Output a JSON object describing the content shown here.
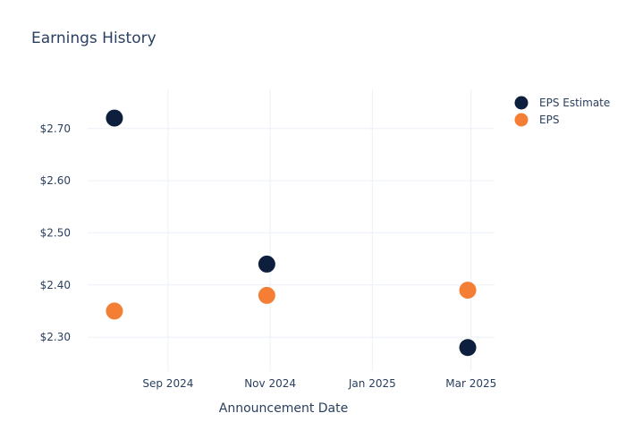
{
  "chart_data": {
    "type": "scatter",
    "title": "Earnings History",
    "xlabel": "Announcement Date",
    "ylabel": "",
    "x_ticks": [
      {
        "date": "2024-09-01",
        "label": "Sep 2024"
      },
      {
        "date": "2024-11-01",
        "label": "Nov 2024"
      },
      {
        "date": "2025-01-01",
        "label": "Jan 2025"
      },
      {
        "date": "2025-03-01",
        "label": "Mar 2025"
      }
    ],
    "y_ticks": [
      {
        "value": 2.3,
        "label": "$2.30"
      },
      {
        "value": 2.4,
        "label": "$2.40"
      },
      {
        "value": 2.5,
        "label": "$2.50"
      },
      {
        "value": 2.6,
        "label": "$2.60"
      },
      {
        "value": 2.7,
        "label": "$2.70"
      }
    ],
    "xlim": [
      "2024-07-15",
      "2025-03-15"
    ],
    "ylim": [
      2.235,
      2.775
    ],
    "grid": true,
    "legend_position": "top-right",
    "series": [
      {
        "name": "EPS Estimate",
        "color": "#0d1f3c",
        "points": [
          {
            "x": "2024-07-31",
            "y": 2.72
          },
          {
            "x": "2024-10-30",
            "y": 2.44
          },
          {
            "x": "2025-02-27",
            "y": 2.28
          }
        ]
      },
      {
        "name": "EPS",
        "color": "#f37e34",
        "points": [
          {
            "x": "2024-07-31",
            "y": 2.35
          },
          {
            "x": "2024-10-30",
            "y": 2.38
          },
          {
            "x": "2025-02-27",
            "y": 2.39
          }
        ]
      }
    ]
  }
}
